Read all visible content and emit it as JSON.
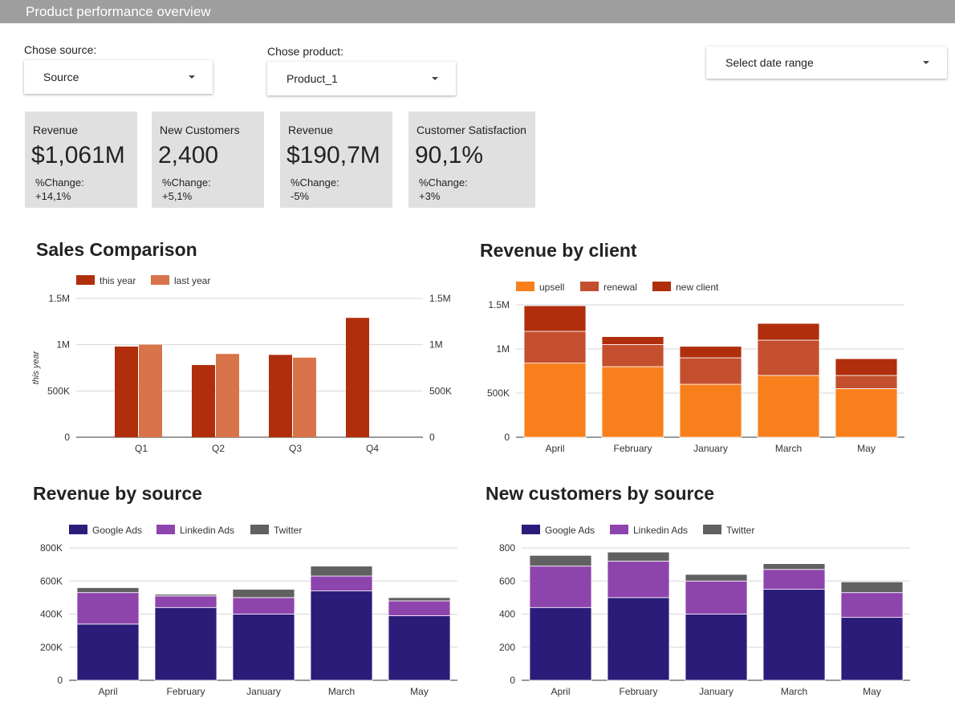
{
  "header": {
    "title": "Product performance overview"
  },
  "controls": {
    "source": {
      "label": "Chose source:",
      "value": "Source"
    },
    "product": {
      "label": "Chose product:",
      "value": "Product_1"
    },
    "date": {
      "value": "Select date range"
    }
  },
  "kpis": [
    {
      "label": "Revenue",
      "value": "$1,061M",
      "change_label": "%Change:",
      "change_value": "+14,1%"
    },
    {
      "label": "New Customers",
      "value": "2,400",
      "change_label": "%Change:",
      "change_value": "+5,1%"
    },
    {
      "label": "Revenue",
      "value": "$190,7M",
      "change_label": "%Change:",
      "change_value": "-5%"
    },
    {
      "label": "Customer Satisfaction",
      "value": "90,1%",
      "change_label": "%Change:",
      "change_value": "+3%"
    }
  ],
  "chart_data": [
    {
      "type": "bar",
      "title": "Sales Comparison",
      "ylabel": "this year",
      "categories": [
        "Q1",
        "Q2",
        "Q3",
        "Q4"
      ],
      "ylim": [
        0,
        1500000
      ],
      "yticks": [
        "0",
        "500K",
        "1M",
        "1.5M"
      ],
      "yticks_right": [
        "0",
        "500K",
        "1M",
        "1.5M"
      ],
      "legend_position": "top-left",
      "grid": true,
      "series": [
        {
          "name": "this year",
          "color": "#b02e0c",
          "values": [
            980000,
            780000,
            890000,
            1290000
          ]
        },
        {
          "name": "last year",
          "color": "#d9734a",
          "values": [
            1000000,
            900000,
            860000,
            null
          ]
        }
      ]
    },
    {
      "type": "bar",
      "stacked": true,
      "title": "Revenue by client",
      "categories": [
        "April",
        "February",
        "January",
        "March",
        "May"
      ],
      "ylim": [
        0,
        1500000
      ],
      "yticks": [
        "0",
        "500K",
        "1M",
        "1.5M"
      ],
      "legend_position": "top-left",
      "grid": true,
      "series": [
        {
          "name": "upsell",
          "color": "#f97f1c",
          "values": [
            840000,
            800000,
            600000,
            700000,
            550000
          ]
        },
        {
          "name": "renewal",
          "color": "#c44f2e",
          "values": [
            360000,
            250000,
            300000,
            400000,
            150000
          ]
        },
        {
          "name": "new client",
          "color": "#b02e0c",
          "values": [
            290000,
            90000,
            130000,
            190000,
            190000
          ]
        }
      ]
    },
    {
      "type": "bar",
      "stacked": true,
      "title": "Revenue by source",
      "categories": [
        "April",
        "February",
        "January",
        "March",
        "May"
      ],
      "ylim": [
        0,
        800000
      ],
      "yticks": [
        "0",
        "200K",
        "400K",
        "600K",
        "800K"
      ],
      "legend_position": "top-left",
      "grid": true,
      "series": [
        {
          "name": "Google Ads",
          "color": "#2b1c7a",
          "values": [
            340000,
            440000,
            400000,
            540000,
            390000
          ]
        },
        {
          "name": "Linkedin Ads",
          "color": "#8e44ad",
          "values": [
            190000,
            70000,
            100000,
            90000,
            90000
          ]
        },
        {
          "name": "Twitter",
          "color": "#616161",
          "values": [
            30000,
            10000,
            50000,
            60000,
            20000
          ]
        }
      ]
    },
    {
      "type": "bar",
      "stacked": true,
      "title": "New customers by source",
      "categories": [
        "April",
        "February",
        "January",
        "March",
        "May"
      ],
      "ylim": [
        0,
        800
      ],
      "yticks": [
        "0",
        "200",
        "400",
        "600",
        "800"
      ],
      "legend_position": "top-left",
      "grid": true,
      "series": [
        {
          "name": "Google Ads",
          "color": "#2b1c7a",
          "values": [
            440,
            500,
            400,
            550,
            380
          ]
        },
        {
          "name": "Linkedin Ads",
          "color": "#8e44ad",
          "values": [
            250,
            220,
            200,
            120,
            150
          ]
        },
        {
          "name": "Twitter",
          "color": "#616161",
          "values": [
            65,
            55,
            40,
            35,
            65
          ]
        }
      ]
    }
  ]
}
